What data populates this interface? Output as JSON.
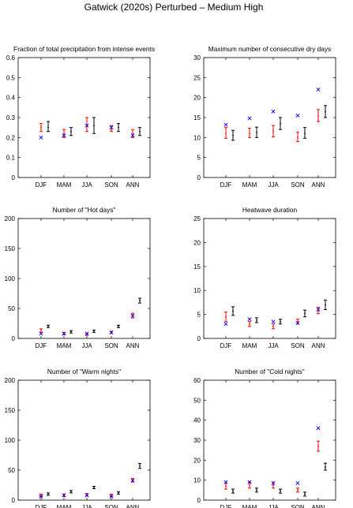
{
  "suptitle": "Gatwick (2020s) Perturbed – Medium High",
  "categories": [
    "DJF",
    "MAM",
    "JJA",
    "SON",
    "ANN"
  ],
  "colors": {
    "observed": "#0000ff",
    "control": "#ff0000",
    "perturbed": "#000000"
  },
  "chart_data": [
    {
      "type": "scatter",
      "title": "Fraction of total precipitation from intense events",
      "ylim": [
        0,
        0.6
      ],
      "yticks": [
        "0",
        "0.1",
        "0.2",
        "0.3",
        "0.4",
        "0.5",
        "0.6"
      ],
      "observed": [
        0.2,
        0.21,
        0.26,
        0.25,
        0.21
      ],
      "control": {
        "mean": [
          0.25,
          0.22,
          0.26,
          0.24,
          0.22
        ],
        "low": [
          0.23,
          0.2,
          0.23,
          0.23,
          0.2
        ],
        "high": [
          0.27,
          0.24,
          0.3,
          0.26,
          0.24
        ]
      },
      "perturbed": {
        "mean": [
          0.25,
          0.23,
          0.26,
          0.25,
          0.23
        ],
        "low": [
          0.23,
          0.21,
          0.22,
          0.23,
          0.21
        ],
        "high": [
          0.28,
          0.25,
          0.3,
          0.27,
          0.25
        ]
      }
    },
    {
      "type": "scatter",
      "title": "Maximum number of consecutive dry days",
      "ylim": [
        0,
        30
      ],
      "yticks": [
        "0",
        "5",
        "10",
        "15",
        "20",
        "25",
        "30"
      ],
      "observed": [
        13.2,
        14.8,
        16.5,
        15.5,
        22.0
      ],
      "control": {
        "mean": [
          11.0,
          11.0,
          11.5,
          10.0,
          15.5
        ],
        "low": [
          9.8,
          10.0,
          10.2,
          9.0,
          14.0
        ],
        "high": [
          12.5,
          12.3,
          13.0,
          11.3,
          17.0
        ]
      },
      "perturbed": {
        "mean": [
          10.5,
          11.3,
          13.5,
          11.0,
          16.5
        ],
        "low": [
          9.3,
          10.0,
          12.0,
          9.8,
          15.0
        ],
        "high": [
          11.8,
          12.6,
          15.0,
          12.5,
          18.0
        ]
      }
    },
    {
      "type": "scatter",
      "title": "Number of \"Hot days\"",
      "ylim": [
        0,
        200
      ],
      "yticks": [
        "0",
        "50",
        "100",
        "150",
        "200"
      ],
      "observed": [
        8,
        8,
        8,
        10,
        38
      ],
      "control": {
        "mean": [
          13,
          8,
          7,
          10,
          38
        ],
        "low": [
          10,
          6,
          5,
          8,
          34
        ],
        "high": [
          16,
          10,
          9,
          12,
          42
        ]
      },
      "perturbed": {
        "mean": [
          20,
          11,
          12,
          20,
          63
        ],
        "low": [
          18,
          9,
          10,
          18,
          59
        ],
        "high": [
          22,
          13,
          14,
          22,
          67
        ]
      }
    },
    {
      "type": "scatter",
      "title": "Heatwave duration",
      "ylim": [
        0,
        25
      ],
      "yticks": [
        "0",
        "5",
        "10",
        "15",
        "20",
        "25"
      ],
      "observed": [
        3.0,
        4.0,
        3.5,
        3.2,
        6.0
      ],
      "control": {
        "mean": [
          4.5,
          3.0,
          2.5,
          3.5,
          5.8
        ],
        "low": [
          3.5,
          2.5,
          2.0,
          3.0,
          5.2
        ],
        "high": [
          5.5,
          3.5,
          3.0,
          4.0,
          6.5
        ]
      },
      "perturbed": {
        "mean": [
          5.7,
          3.8,
          3.5,
          5.2,
          7.0
        ],
        "low": [
          4.8,
          3.3,
          3.0,
          4.5,
          6.0
        ],
        "high": [
          6.6,
          4.3,
          4.0,
          5.9,
          8.0
        ]
      }
    },
    {
      "type": "scatter",
      "title": "Number of \"Warm nights\"",
      "ylim": [
        0,
        200
      ],
      "yticks": [
        "0",
        "50",
        "100",
        "150",
        "200"
      ],
      "observed": [
        6,
        8,
        8,
        6,
        33
      ],
      "control": {
        "mean": [
          8,
          8,
          9,
          8,
          33
        ],
        "low": [
          6,
          6,
          7,
          6,
          30
        ],
        "high": [
          10,
          10,
          11,
          10,
          36
        ]
      },
      "perturbed": {
        "mean": [
          10,
          14,
          21,
          12,
          57
        ],
        "low": [
          8,
          12,
          19,
          10,
          53
        ],
        "high": [
          12,
          16,
          23,
          14,
          61
        ]
      }
    },
    {
      "type": "scatter",
      "title": "Number of \"Cold nights\"",
      "ylim": [
        0,
        60
      ],
      "yticks": [
        "0",
        "10",
        "20",
        "30",
        "40",
        "50",
        "60"
      ],
      "observed": [
        9.0,
        9.0,
        8.5,
        8.5,
        36.0
      ],
      "control": {
        "mean": [
          7.0,
          7.5,
          7.5,
          5.0,
          27.0
        ],
        "low": [
          5.5,
          6.0,
          6.0,
          4.0,
          24.5
        ],
        "high": [
          8.5,
          9.0,
          9.0,
          6.0,
          29.5
        ]
      },
      "perturbed": {
        "mean": [
          4.5,
          5.0,
          4.5,
          3.0,
          16.5
        ],
        "low": [
          3.5,
          4.0,
          3.5,
          2.0,
          15.0
        ],
        "high": [
          5.5,
          6.0,
          5.5,
          4.0,
          18.5
        ]
      }
    }
  ]
}
